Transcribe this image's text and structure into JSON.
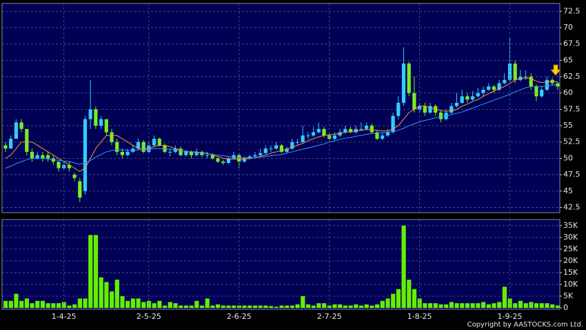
{
  "chart_data": [
    {
      "type": "candlestick",
      "up_color": "#33ccff",
      "down_color": "#77ee22",
      "ylim": [
        41.7,
        73.7
      ],
      "yticks": [
        42.5,
        45,
        47.5,
        50,
        52.5,
        55,
        57.5,
        60,
        62.5,
        65,
        67.5,
        70,
        72.5
      ],
      "grid": true,
      "candles": [
        [
          52,
          52.5,
          51,
          51.5
        ],
        [
          51.5,
          53.5,
          51.5,
          53
        ],
        [
          53,
          56,
          53,
          55.5
        ],
        [
          55.5,
          56,
          54,
          54.5
        ],
        [
          54.5,
          54.5,
          50.5,
          51
        ],
        [
          51,
          51.5,
          49.5,
          50
        ],
        [
          50,
          51,
          49.8,
          50.5
        ],
        [
          50.5,
          51,
          49.5,
          50
        ],
        [
          50.5,
          51,
          49.5,
          50
        ],
        [
          50,
          50.5,
          49,
          49.5
        ],
        [
          49.5,
          49.5,
          48,
          48.5
        ],
        [
          48.5,
          49.5,
          48.3,
          49
        ],
        [
          49,
          49.5,
          48,
          48.5
        ],
        [
          47.5,
          47.8,
          46.5,
          47
        ],
        [
          46.5,
          47,
          43.3,
          44
        ],
        [
          45,
          56.5,
          44.5,
          56
        ],
        [
          56,
          62,
          54.5,
          57.5
        ],
        [
          57.5,
          58,
          54.5,
          55
        ],
        [
          55,
          56.5,
          54.5,
          56
        ],
        [
          56,
          56,
          53.5,
          54
        ],
        [
          54,
          54.5,
          52,
          52.5
        ],
        [
          52.5,
          53,
          50.5,
          51
        ],
        [
          51,
          51.5,
          50,
          50.5
        ],
        [
          50.5,
          51.5,
          50.3,
          51
        ],
        [
          51,
          52,
          50.8,
          51.5
        ],
        [
          51.5,
          53,
          51.3,
          52.5
        ],
        [
          52.5,
          52.8,
          50.8,
          51
        ],
        [
          51,
          52.5,
          50.8,
          52
        ],
        [
          52,
          53.5,
          51.8,
          53
        ],
        [
          53,
          53.2,
          51.8,
          52
        ],
        [
          52,
          52.3,
          50.8,
          51
        ],
        [
          51,
          51.5,
          50.3,
          51
        ],
        [
          51,
          52,
          50.8,
          51.5
        ],
        [
          51.5,
          51.8,
          50.3,
          50.5
        ],
        [
          50.5,
          51.3,
          50.3,
          51
        ],
        [
          51,
          51.2,
          50,
          50.5
        ],
        [
          50.5,
          51.5,
          50.3,
          51
        ],
        [
          51,
          51.2,
          50.2,
          50.5
        ],
        [
          50.5,
          51,
          50,
          50.5
        ],
        [
          50.5,
          50.8,
          49.8,
          50
        ],
        [
          50,
          50.2,
          49.3,
          49.5
        ],
        [
          49.5,
          49.8,
          49,
          49.3
        ],
        [
          49.3,
          50.3,
          49.2,
          50
        ],
        [
          50,
          51,
          49.8,
          50.5
        ],
        [
          50.5,
          50.8,
          48.5,
          49.5
        ],
        [
          49.5,
          50.3,
          49.4,
          50
        ],
        [
          50,
          50.5,
          49.8,
          50.3
        ],
        [
          50.3,
          51,
          50.1,
          50.5
        ],
        [
          50.5,
          51.5,
          50.3,
          50.8
        ],
        [
          50.8,
          52,
          50.6,
          51.5
        ],
        [
          51.5,
          52,
          51,
          51.5
        ],
        [
          51.5,
          52.5,
          51.3,
          52
        ],
        [
          52,
          52.2,
          50.8,
          51
        ],
        [
          51,
          51.8,
          50.8,
          51.5
        ],
        [
          51.5,
          53,
          51.3,
          52.5
        ],
        [
          52.5,
          53,
          52,
          52.5
        ],
        [
          52.5,
          55,
          52.3,
          53.5
        ],
        [
          53.5,
          54,
          53,
          53.5
        ],
        [
          53.5,
          54.8,
          53.3,
          54
        ],
        [
          54,
          55.5,
          53.8,
          54.5
        ],
        [
          54.5,
          54.8,
          53.2,
          53.5
        ],
        [
          53.5,
          53.8,
          52.8,
          53
        ],
        [
          53,
          54,
          52.8,
          53.5
        ],
        [
          53.5,
          54.5,
          53.3,
          54
        ],
        [
          54,
          55,
          53.8,
          54.5
        ],
        [
          54.5,
          54.8,
          53.8,
          54
        ],
        [
          54,
          55,
          53.8,
          54.5
        ],
        [
          54.5,
          55.5,
          54.2,
          54.5
        ],
        [
          54.5,
          55.5,
          54.3,
          55
        ],
        [
          55,
          55.3,
          53.8,
          54
        ],
        [
          54,
          54.3,
          52.8,
          53
        ],
        [
          53,
          54,
          52.8,
          53.5
        ],
        [
          53.5,
          54.5,
          53.3,
          54
        ],
        [
          54,
          57,
          53.8,
          56.5
        ],
        [
          56.5,
          59.5,
          56,
          58.5
        ],
        [
          58.5,
          67,
          58,
          64.5
        ],
        [
          64.5,
          64.8,
          59.5,
          60
        ],
        [
          60,
          62.5,
          57,
          57.5
        ],
        [
          57.5,
          58.5,
          57,
          58
        ],
        [
          58,
          58.5,
          56.5,
          57
        ],
        [
          57,
          58.5,
          56.8,
          58
        ],
        [
          58,
          58.3,
          56.5,
          57
        ],
        [
          57,
          57.3,
          55.5,
          56
        ],
        [
          56,
          57.5,
          55.8,
          57
        ],
        [
          57,
          58.5,
          56.8,
          58
        ],
        [
          58,
          60,
          57.8,
          58.5
        ],
        [
          58.5,
          60.5,
          58.3,
          59.5
        ],
        [
          59.5,
          60,
          58.5,
          59
        ],
        [
          59,
          60.3,
          58.8,
          59.5
        ],
        [
          59.5,
          60.8,
          59.3,
          60
        ],
        [
          60,
          61,
          59.5,
          60.5
        ],
        [
          60.5,
          61.5,
          60.3,
          61
        ],
        [
          61,
          61.2,
          60,
          60.5
        ],
        [
          60.5,
          62,
          60.3,
          61.5
        ],
        [
          61.5,
          63,
          61.3,
          62
        ],
        [
          62,
          68.5,
          61.8,
          64.5
        ],
        [
          64.5,
          65,
          61.5,
          62
        ],
        [
          62,
          63.5,
          61.8,
          62.5
        ],
        [
          62.5,
          63.5,
          62,
          62.5
        ],
        [
          62.5,
          63,
          60.5,
          61
        ],
        [
          61,
          61.3,
          58.8,
          59.5
        ],
        [
          59.5,
          61,
          59.3,
          60.5
        ],
        [
          60.5,
          62.5,
          60.3,
          62
        ],
        [
          62,
          62.3,
          61.2,
          61.5
        ],
        [
          61.5,
          61.7,
          60.5,
          61
        ]
      ],
      "series": [
        {
          "color": "#ff9933",
          "values": [
            50,
            50.5,
            51.5,
            52.5,
            52.5,
            52.5,
            52,
            51.5,
            51,
            50.5,
            50,
            49.5,
            49,
            48.5,
            48,
            48.5,
            50,
            51.5,
            52.5,
            53.5,
            53.5,
            53.5,
            53,
            52.5,
            52,
            51.5,
            51.5,
            51.5,
            51.8,
            52,
            52,
            51.8,
            51.5,
            51.3,
            51,
            51,
            51,
            50.8,
            50.8,
            50.5,
            50.3,
            50,
            49.9,
            49.9,
            49.9,
            49.9,
            50,
            50.1,
            50.3,
            50.5,
            50.8,
            51,
            51.2,
            51.4,
            51.7,
            52,
            52.3,
            52.7,
            53,
            53.3,
            53.5,
            53.6,
            53.7,
            53.8,
            54,
            54.1,
            54.2,
            54.3,
            54.4,
            54.4,
            54.3,
            54.2,
            54.2,
            54.5,
            55,
            56,
            57,
            57.5,
            58,
            58,
            57.8,
            57.6,
            57.3,
            57.2,
            57.3,
            57.5,
            58,
            58.3,
            58.7,
            59,
            59.5,
            59.9,
            60.3,
            60.7,
            61,
            61.5,
            62,
            62.2,
            62.3,
            62.2,
            61.8,
            61.6,
            61.7,
            61.8,
            61.7
          ]
        },
        {
          "color": "#3399ff",
          "values": [
            48.5,
            48.8,
            49.2,
            49.5,
            49.8,
            50,
            50,
            50,
            49.9,
            49.8,
            49.7,
            49.6,
            49.5,
            49.3,
            49.1,
            49.3,
            49.7,
            50.2,
            50.6,
            51,
            51.2,
            51.3,
            51.3,
            51.2,
            51.2,
            51.3,
            51.3,
            51.4,
            51.5,
            51.5,
            51.5,
            51.4,
            51.3,
            51.2,
            51.1,
            51,
            50.9,
            50.8,
            50.7,
            50.6,
            50.5,
            50.4,
            50.3,
            50.2,
            50.1,
            50.1,
            50.1,
            50.1,
            50.2,
            50.3,
            50.4,
            50.5,
            50.6,
            50.8,
            51,
            51.2,
            51.4,
            51.6,
            51.8,
            52,
            52.2,
            52.5,
            52.7,
            52.9,
            53.1,
            53.2,
            53.4,
            53.5,
            53.7,
            53.8,
            53.9,
            53.9,
            54,
            54.1,
            54.3,
            54.6,
            55,
            55.3,
            55.6,
            55.8,
            56,
            56.2,
            56.4,
            56.5,
            56.7,
            56.9,
            57.1,
            57.4,
            57.7,
            58,
            58.3,
            58.6,
            58.9,
            59.2,
            59.5,
            59.8,
            60.2,
            60.5,
            60.8,
            61,
            61,
            61,
            61.1,
            61.2,
            61.3
          ]
        }
      ]
    },
    {
      "type": "bar",
      "color": "#66ee00",
      "ylim": [
        0,
        37000
      ],
      "yticks": [
        0,
        {
          "value": 5000,
          "label": "5K"
        },
        {
          "value": 10000,
          "label": "10K"
        },
        {
          "value": 15000,
          "label": "15K"
        },
        {
          "value": 20000,
          "label": "20K"
        },
        {
          "value": 25000,
          "label": "25K"
        },
        {
          "value": 30000,
          "label": "30K"
        },
        {
          "value": 35000,
          "label": "35K"
        }
      ],
      "grid": true,
      "categories": [
        null,
        null,
        null,
        null,
        null,
        null,
        null,
        null,
        null,
        null,
        null,
        "1-4-25",
        null,
        null,
        null,
        null,
        null,
        null,
        null,
        null,
        null,
        null,
        null,
        null,
        null,
        null,
        null,
        "2-5-25",
        null,
        null,
        null,
        null,
        null,
        null,
        null,
        null,
        null,
        null,
        null,
        null,
        null,
        null,
        null,
        null,
        "2-6-25",
        null,
        null,
        null,
        null,
        null,
        null,
        null,
        null,
        null,
        null,
        null,
        null,
        null,
        null,
        null,
        null,
        "2-7-25",
        null,
        null,
        null,
        null,
        null,
        null,
        null,
        null,
        null,
        null,
        null,
        null,
        null,
        null,
        null,
        null,
        "1-8-25",
        null,
        null,
        null,
        null,
        null,
        null,
        null,
        null,
        null,
        null,
        null,
        null,
        null,
        null,
        null,
        null,
        "1-9-25",
        null,
        null,
        null,
        null,
        null,
        null,
        null,
        null,
        null
      ],
      "values": [
        3000,
        3000,
        6000,
        3000,
        4000,
        2000,
        3000,
        3000,
        2000,
        2000,
        2000,
        2500,
        1000,
        1500,
        4000,
        4000,
        31000,
        31000,
        13000,
        11000,
        7000,
        12000,
        5000,
        3000,
        4000,
        4000,
        2500,
        3000,
        2000,
        3000,
        1000,
        2500,
        2000,
        1000,
        1000,
        1000,
        3000,
        1000,
        4000,
        1000,
        1500,
        1000,
        1000,
        1000,
        1000,
        1000,
        1000,
        1000,
        1000,
        1000,
        800,
        500,
        1000,
        1000,
        1000,
        1500,
        5000,
        1500,
        1000,
        2000,
        2000,
        1000,
        1500,
        1500,
        1000,
        1000,
        1500,
        1000,
        1500,
        1000,
        1500,
        3000,
        4000,
        6000,
        8000,
        35000,
        12000,
        8000,
        4000,
        2000,
        2000,
        2000,
        1500,
        1500,
        2500,
        2000,
        2000,
        2000,
        2000,
        2000,
        2500,
        1500,
        2000,
        2500,
        9000,
        4000,
        2000,
        3000,
        2000,
        2500,
        2000,
        2000,
        2000,
        1500,
        1000
      ]
    }
  ],
  "footer": {
    "copyright": "Copyright by AASTOCKS.com Ltd."
  }
}
